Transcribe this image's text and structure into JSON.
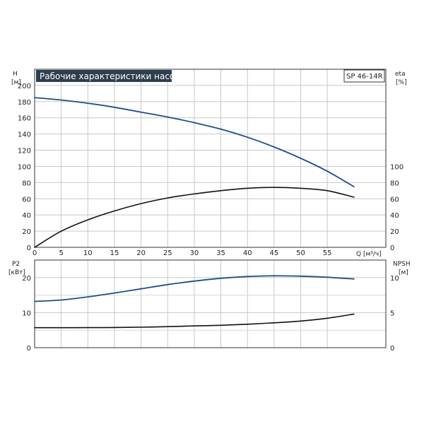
{
  "chart_data": [
    {
      "type": "line",
      "title": "Рабочие характеристики насоса",
      "model": "SP 46-14R",
      "xlabel": "Q [м³/ч]",
      "ylabel": "H",
      "ylabel_unit": "[м]",
      "y2label": "eta",
      "y2label_unit": "[%]",
      "xlim": [
        0,
        66
      ],
      "ylim": [
        0,
        220
      ],
      "y2lim": [
        0,
        220
      ],
      "x_ticks": [
        "0",
        "5",
        "10",
        "15",
        "20",
        "25",
        "30",
        "35",
        "40",
        "45",
        "50",
        "55"
      ],
      "y_ticks": [
        "0",
        "20",
        "40",
        "60",
        "80",
        "100",
        "120",
        "140",
        "160",
        "180",
        "200"
      ],
      "y2_ticks": [
        "0",
        "20",
        "40",
        "60",
        "80",
        "100"
      ],
      "grid": true,
      "series": [
        {
          "axis": "y",
          "color": "#1f4e8c",
          "x": [
            0,
            5,
            10,
            15,
            20,
            25,
            30,
            35,
            40,
            45,
            50,
            55,
            60
          ],
          "values": [
            185,
            182,
            178,
            173,
            167,
            161,
            154,
            146,
            136,
            124,
            110,
            94,
            75
          ]
        },
        {
          "axis": "y2",
          "color": "#111111",
          "x": [
            0,
            5,
            10,
            15,
            20,
            25,
            30,
            35,
            40,
            45,
            50,
            55,
            60
          ],
          "values": [
            0,
            20,
            34,
            45,
            54,
            61,
            66,
            70,
            73,
            74,
            73,
            70,
            62
          ]
        }
      ]
    },
    {
      "type": "line",
      "ylabel": "P2",
      "ylabel_unit": "[кВт]",
      "y2label": "NPSH",
      "y2label_unit": "[м]",
      "xlim": [
        0,
        66
      ],
      "ylim": [
        0,
        25
      ],
      "y2lim": [
        0,
        12.5
      ],
      "y_ticks": [
        "0",
        "10",
        "20"
      ],
      "y2_ticks": [
        "0",
        "5",
        "10"
      ],
      "grid": true,
      "series": [
        {
          "axis": "y",
          "color": "#1f4e8c",
          "x": [
            0,
            5,
            10,
            15,
            20,
            25,
            30,
            35,
            40,
            45,
            50,
            55,
            60
          ],
          "values": [
            13.2,
            13.6,
            14.5,
            15.6,
            16.8,
            18.0,
            19.0,
            19.8,
            20.3,
            20.5,
            20.4,
            20.1,
            19.6
          ]
        },
        {
          "axis": "y2",
          "color": "#111111",
          "x": [
            0,
            5,
            10,
            15,
            20,
            25,
            30,
            35,
            40,
            45,
            50,
            55,
            60
          ],
          "values": [
            2.85,
            2.85,
            2.86,
            2.88,
            2.92,
            3.0,
            3.1,
            3.2,
            3.35,
            3.55,
            3.8,
            4.2,
            4.8
          ]
        }
      ]
    }
  ]
}
